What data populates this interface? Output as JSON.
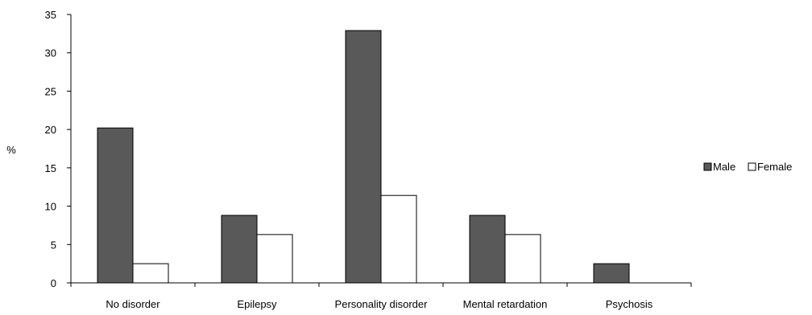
{
  "chart_data": {
    "type": "bar",
    "ylabel": "%",
    "xlabel": "",
    "title": "",
    "ylim": [
      0,
      35
    ],
    "yticks": [
      0,
      5,
      10,
      15,
      20,
      25,
      30,
      35
    ],
    "categories": [
      "No disorder",
      "Epilepsy",
      "Personality disorder",
      "Mental retardation",
      "Psychosis"
    ],
    "series": [
      {
        "name": "Male",
        "color": "#595959",
        "values": [
          20.2,
          8.8,
          32.9,
          8.8,
          2.5
        ]
      },
      {
        "name": "Female",
        "color": "#ffffff",
        "values": [
          2.5,
          6.3,
          11.4,
          6.3,
          0
        ]
      }
    ],
    "grid": false,
    "legend_position": "right"
  }
}
